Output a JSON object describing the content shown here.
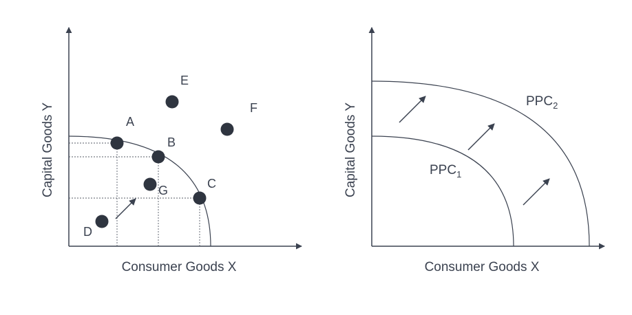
{
  "left_panel": {
    "x_axis_label": "Consumer Goods X",
    "y_axis_label": "Capital Goods Y",
    "points": {
      "A": "A",
      "B": "B",
      "C": "C",
      "D": "D",
      "E": "E",
      "F": "F",
      "G": "G"
    }
  },
  "right_panel": {
    "x_axis_label": "Consumer Goods X",
    "y_axis_label": "Capital Goods Y",
    "curve_1": {
      "name": "PPC",
      "subscript": "1"
    },
    "curve_2": {
      "name": "PPC",
      "subscript": "2"
    }
  },
  "colors": {
    "ink": "#3b4250",
    "dot": "#2f3540",
    "guide": "#555b66"
  }
}
